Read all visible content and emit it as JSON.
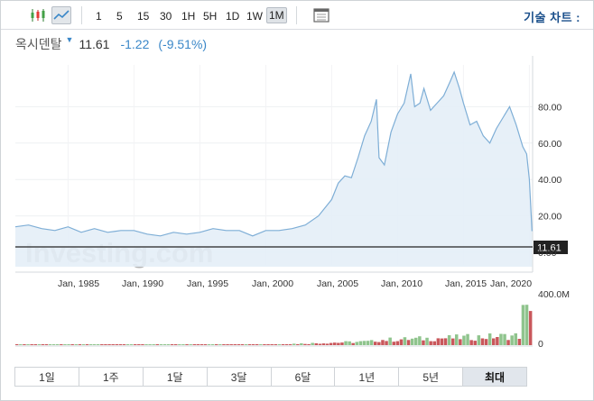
{
  "toolbar": {
    "intervals": [
      "1",
      "5",
      "15",
      "30",
      "1H",
      "5H",
      "1D",
      "1W",
      "1M"
    ],
    "active_interval": "1M",
    "technical_chart_label": "기술 차트 :"
  },
  "quote": {
    "name": "옥시덴탈",
    "price": "11.61",
    "change": "-1.22",
    "change_pct": "(-9.51%)"
  },
  "watermark": "Investing.com",
  "range_buttons": [
    "1일",
    "1주",
    "1달",
    "3달",
    "6달",
    "1년",
    "5년",
    "최대"
  ],
  "active_range": "최대",
  "colors": {
    "accent": "#3a87c8",
    "line": "#7eaed6",
    "area": "#e4eef7",
    "vol_up": "#8fc48d",
    "vol_down": "#c9575b"
  },
  "chart_data": {
    "type": "area",
    "x_tick_labels": [
      "Jan, 1985",
      "Jan, 1990",
      "Jan, 1995",
      "Jan, 2000",
      "Jan, 2005",
      "Jan, 2010",
      "Jan, 2015",
      "Jan, 2020"
    ],
    "y_tick_labels": [
      "80.00",
      "60.00",
      "40.00",
      "20.00",
      "0.00"
    ],
    "ylim": [
      0,
      100
    ],
    "current_price_label": "11.61",
    "series": [
      {
        "x": [
          1981.0,
          1982.0,
          1983.0,
          1984.0,
          1985.0,
          1986.0,
          1987.0,
          1988.0,
          1989.0,
          1990.0,
          1991.0,
          1992.0,
          1993.0,
          1994.0,
          1995.0,
          1996.0,
          1997.0,
          1998.0,
          1999.0,
          2000.0,
          2001.0,
          2002.0,
          2003.0,
          2004.0,
          2005.0,
          2005.5,
          2006.0,
          2006.5,
          2007.0,
          2007.5,
          2008.0,
          2008.4,
          2008.6,
          2009.0,
          2009.5,
          2010.0,
          2010.5,
          2011.0,
          2011.3,
          2011.7,
          2012.0,
          2012.5,
          2013.0,
          2013.5,
          2014.0,
          2014.3,
          2014.7,
          2015.0,
          2015.5,
          2016.0,
          2016.5,
          2017.0,
          2017.5,
          2018.0,
          2018.5,
          2019.0,
          2019.5,
          2019.8,
          2020.0,
          2020.2
        ],
        "y": [
          14,
          15,
          13,
          12,
          14,
          11,
          13,
          11,
          12,
          12,
          10,
          9,
          11,
          10,
          11,
          13,
          12,
          12,
          9,
          12,
          12,
          13,
          15,
          20,
          29,
          38,
          42,
          41,
          52,
          64,
          72,
          84,
          52,
          48,
          66,
          76,
          82,
          98,
          80,
          82,
          90,
          78,
          82,
          86,
          94,
          99,
          90,
          82,
          70,
          72,
          64,
          60,
          68,
          74,
          80,
          70,
          58,
          54,
          40,
          11.61
        ]
      }
    ],
    "volume": {
      "unit": "M",
      "ylim": [
        0,
        400
      ],
      "tick_labels": [
        "400.0M",
        "0"
      ]
    }
  }
}
